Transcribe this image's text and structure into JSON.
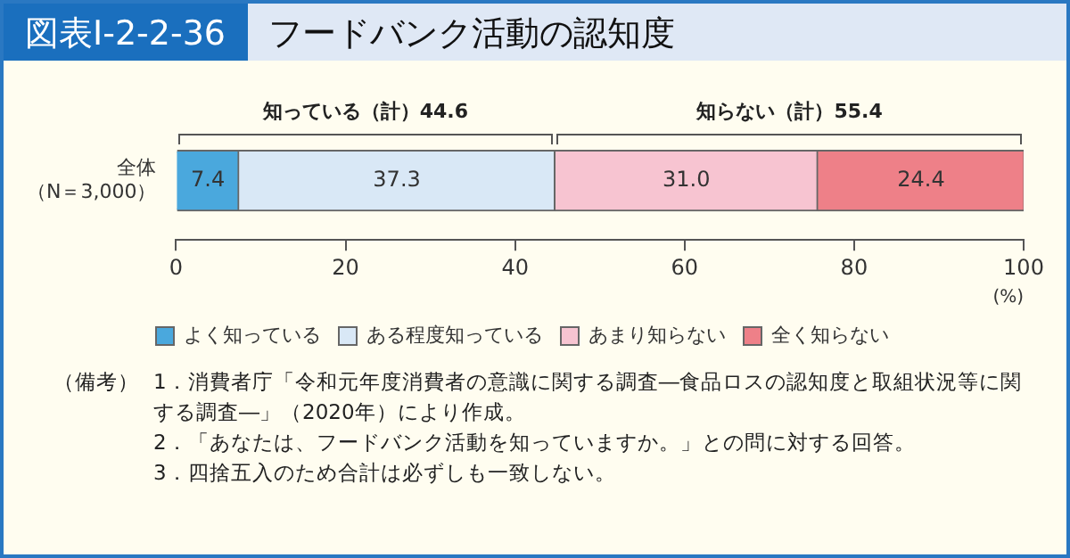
{
  "chart_data": {
    "type": "bar",
    "orientation": "horizontal",
    "stacked": true,
    "title": "図表Ⅰ-2-2-36",
    "subtitle": "フードバンク活動の認知度",
    "categories": [
      "全体（N＝3,000）"
    ],
    "series": [
      {
        "name": "よく知っている",
        "color": "#4aa8dd",
        "values": [
          7.4
        ],
        "value_labels": [
          "7.4"
        ]
      },
      {
        "name": "ある程度知っている",
        "color": "#d9e8f6",
        "values": [
          37.3
        ],
        "value_labels": [
          "37.3"
        ]
      },
      {
        "name": "あまり知らない",
        "color": "#f7c4d1",
        "values": [
          31.0
        ],
        "value_labels": [
          "31.0"
        ]
      },
      {
        "name": "全く知らない",
        "color": "#ee8088",
        "values": [
          24.4
        ],
        "value_labels": [
          "24.4"
        ]
      }
    ],
    "xlim": [
      0,
      100
    ],
    "xticks": [
      0,
      20,
      40,
      60,
      80,
      100
    ],
    "xlabel": "(%)",
    "grid": false,
    "legend": "bottom",
    "annotations": [
      "知っている（計）44.6",
      "知らない（計）55.4",
      "（備考）",
      "1．消費者庁「令和元年度消費者の意識に関する調査―食品ロスの認知度と取組状況等に関する調査―」（2020年）により作成。",
      "2．「あなたは、フードバンク活動を知っていますか。」との問に対する回答。",
      "3．四捨五入のため合計は必ずしも一致しない。"
    ]
  }
}
